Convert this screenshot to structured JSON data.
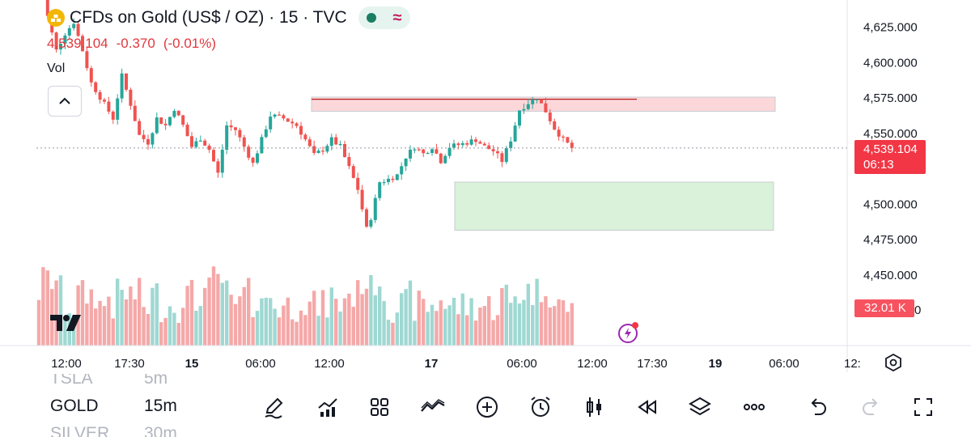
{
  "header": {
    "title": "CFDs on Gold (US$ / OZ) · 15 · TVC",
    "price": "4,539.104",
    "change": "-0.370",
    "change_pct": "(-0.01%)",
    "indicator_label": "Vol"
  },
  "colors": {
    "up": "#26a69a",
    "down": "#ef5350",
    "up_volume": "#9fd8d2",
    "down_volume": "#f5a8a8",
    "supply_zone": "#fbd7da",
    "demand_zone": "#d9f2d9",
    "last_price": "#f23645"
  },
  "price_axis": {
    "labels": [
      "4,625.000",
      "4,600.000",
      "4,575.000",
      "4,550.000",
      "4,500.000",
      "4,475.000",
      "4,450.000"
    ],
    "last_price": "4,539.104",
    "countdown": "06:13",
    "volume_value": "32.01 K",
    "volume_axis_partial": "0"
  },
  "time_axis": {
    "labels": [
      "12:00",
      "17:30",
      "15",
      "06:00",
      "12:00",
      "17",
      "06:00",
      "12:00",
      "17:30",
      "19",
      "06:00",
      "12:"
    ]
  },
  "chart_data": {
    "type": "candlestick",
    "symbol": "GOLD",
    "timeframe": "15m",
    "ylim": [
      4465,
      4650
    ],
    "last_price": 4539.104,
    "supply_zone": [
      4565,
      4575
    ],
    "demand_zone": [
      4481,
      4515
    ],
    "resistance_level": 4573.5,
    "path": [
      [
        0,
        4660
      ],
      [
        2,
        4632
      ],
      [
        4,
        4608
      ],
      [
        6,
        4620
      ],
      [
        8,
        4628
      ],
      [
        10,
        4608
      ],
      [
        12,
        4585
      ],
      [
        15,
        4570
      ],
      [
        17,
        4560
      ],
      [
        19,
        4590
      ],
      [
        21,
        4570
      ],
      [
        23,
        4548
      ],
      [
        25,
        4543
      ],
      [
        27,
        4560
      ],
      [
        29,
        4555
      ],
      [
        31,
        4567
      ],
      [
        33,
        4555
      ],
      [
        35,
        4540
      ],
      [
        37,
        4546
      ],
      [
        39,
        4538
      ],
      [
        41,
        4521
      ],
      [
        43,
        4555
      ],
      [
        45,
        4552
      ],
      [
        47,
        4540
      ],
      [
        49,
        4528
      ],
      [
        51,
        4545
      ],
      [
        53,
        4562
      ],
      [
        56,
        4560
      ],
      [
        59,
        4555
      ],
      [
        61,
        4545
      ],
      [
        63,
        4534
      ],
      [
        65,
        4538
      ],
      [
        67,
        4545
      ],
      [
        69,
        4540
      ],
      [
        71,
        4525
      ],
      [
        73,
        4510
      ],
      [
        75,
        4482
      ],
      [
        76,
        4490
      ],
      [
        78,
        4515
      ],
      [
        80,
        4517
      ],
      [
        82,
        4520
      ],
      [
        84,
        4533
      ],
      [
        86,
        4540
      ],
      [
        88,
        4535
      ],
      [
        90,
        4540
      ],
      [
        92,
        4530
      ],
      [
        94,
        4540
      ],
      [
        97,
        4542
      ],
      [
        100,
        4545
      ],
      [
        102,
        4540
      ],
      [
        104,
        4537
      ],
      [
        106,
        4530
      ],
      [
        108,
        4545
      ],
      [
        110,
        4566
      ],
      [
        112,
        4571
      ],
      [
        114,
        4575
      ],
      [
        116,
        4565
      ],
      [
        118,
        4553
      ],
      [
        120,
        4545
      ],
      [
        122,
        4539.104
      ]
    ]
  },
  "symbols": [
    {
      "name": "TSLA",
      "timeframe": "5m"
    },
    {
      "name": "GOLD",
      "timeframe": "15m"
    },
    {
      "name": "SILVER",
      "timeframe": "30m"
    }
  ],
  "toolbar": {
    "icons": [
      "pen-icon",
      "indicators-icon",
      "grid-layout-icon",
      "compare-icon",
      "add-icon",
      "alarm-icon",
      "candles-icon",
      "replay-icon",
      "layers-icon",
      "more-icon",
      "undo-icon",
      "redo-icon",
      "fullscreen-icon"
    ]
  }
}
